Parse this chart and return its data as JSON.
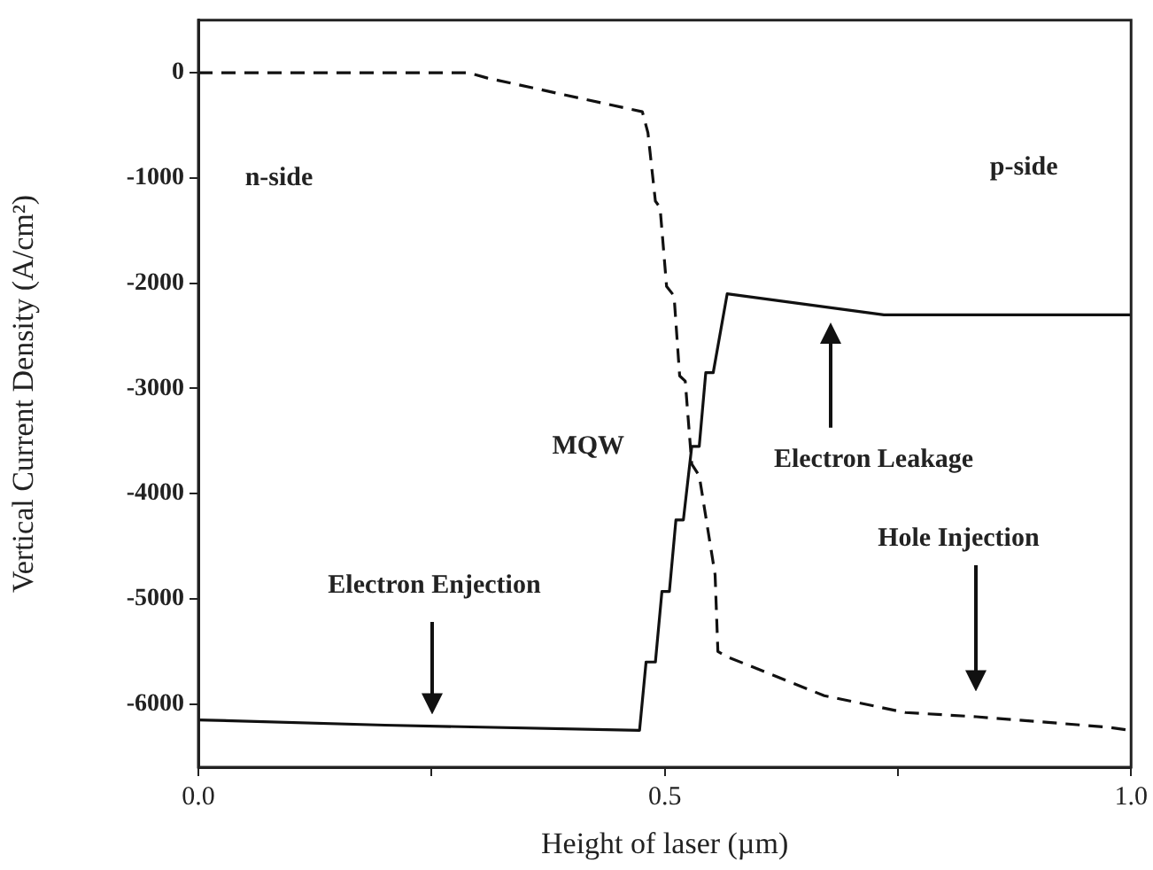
{
  "chart_data": {
    "type": "line",
    "xlabel": "Height of laser (µm)",
    "ylabel": "Vertical Current Density (A/cm²)",
    "xlim": [
      0,
      1
    ],
    "xticks": [
      {
        "value": 0,
        "label": "0.0"
      },
      {
        "value": 0.25,
        "label": null
      },
      {
        "value": 0.5,
        "label": "0.5"
      },
      {
        "value": 0.75,
        "label": null
      },
      {
        "value": 1,
        "label": "1.0"
      }
    ],
    "ylim": [
      -6600,
      500
    ],
    "yticks": [
      0,
      -1000,
      -2000,
      -3000,
      -4000,
      -5000,
      -6000
    ],
    "grid": false,
    "legend": false,
    "marker": "none",
    "series": [
      {
        "color": "#111111",
        "line_style": "solid",
        "x": [
          0,
          0.2,
          0.473,
          0.48,
          0.49,
          0.497,
          0.505,
          0.512,
          0.52,
          0.529,
          0.537,
          0.544,
          0.552,
          0.567,
          0.735,
          1.0
        ],
        "values": [
          -6150,
          -6200,
          -6250,
          -5600,
          -5600,
          -4930,
          -4930,
          -4250,
          -4250,
          -3550,
          -3550,
          -2850,
          -2850,
          -2100,
          -2300,
          -2300
        ]
      },
      {
        "color": "#111111",
        "line_style": "dashed",
        "x": [
          0,
          0.29,
          0.31,
          0.476,
          0.482,
          0.49,
          0.495,
          0.502,
          0.51,
          0.516,
          0.522,
          0.529,
          0.537,
          0.554,
          0.557,
          0.567,
          0.671,
          0.758,
          0.834,
          0.976,
          1.0
        ],
        "values": [
          0,
          0,
          -50,
          -370,
          -570,
          -1220,
          -1280,
          -2030,
          -2120,
          -2880,
          -2930,
          -3720,
          -3830,
          -4770,
          -5500,
          -5550,
          -5920,
          -6080,
          -6120,
          -6220,
          -6250
        ]
      }
    ],
    "annotations": [
      "n-side",
      "p-side",
      "MQW",
      "Electron Enjection",
      "Electron Leakage",
      "Hole Injection"
    ]
  }
}
